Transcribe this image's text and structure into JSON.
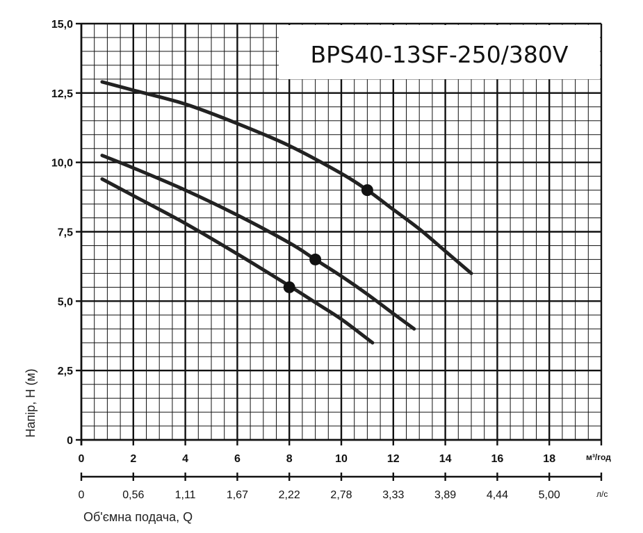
{
  "chart_data": {
    "type": "line",
    "title": "BPS40-13SF-250/380V",
    "xlabel": "Об'ємна подача, Q",
    "ylabel": "Напір, H (м)",
    "x_unit": "м³/год",
    "x2_unit": "л/с",
    "xlim": [
      0,
      20
    ],
    "ylim": [
      0,
      15
    ],
    "grid": true,
    "y_ticks": [
      "0",
      "2,5",
      "5,0",
      "7,5",
      "10,0",
      "12,5",
      "15,0"
    ],
    "x_ticks": [
      "0",
      "2",
      "4",
      "6",
      "8",
      "10",
      "12",
      "14",
      "16",
      "18"
    ],
    "x2_ticks": [
      "0",
      "0,56",
      "1,11",
      "1,67",
      "2,22",
      "2,78",
      "3,33",
      "3,89",
      "4,44",
      "5,00"
    ],
    "series": [
      {
        "x": [
          0.8,
          2,
          4,
          6,
          8,
          10,
          11,
          12,
          13,
          14,
          15
        ],
        "y": [
          12.9,
          12.6,
          12.1,
          11.4,
          10.6,
          9.6,
          9.0,
          8.3,
          7.6,
          6.8,
          6.0
        ],
        "marker": {
          "x": 11,
          "y": 9.0
        }
      },
      {
        "x": [
          0.8,
          2,
          4,
          6,
          8,
          9,
          10,
          11,
          12,
          12.8
        ],
        "y": [
          10.25,
          9.8,
          9.0,
          8.1,
          7.1,
          6.5,
          5.9,
          5.25,
          4.55,
          4.0
        ],
        "marker": {
          "x": 9,
          "y": 6.5
        }
      },
      {
        "x": [
          0.8,
          2,
          4,
          6,
          8,
          9,
          10,
          11.2
        ],
        "y": [
          9.4,
          8.8,
          7.8,
          6.7,
          5.55,
          4.95,
          4.35,
          3.5
        ],
        "marker": {
          "x": 8,
          "y": 5.5
        }
      }
    ]
  }
}
